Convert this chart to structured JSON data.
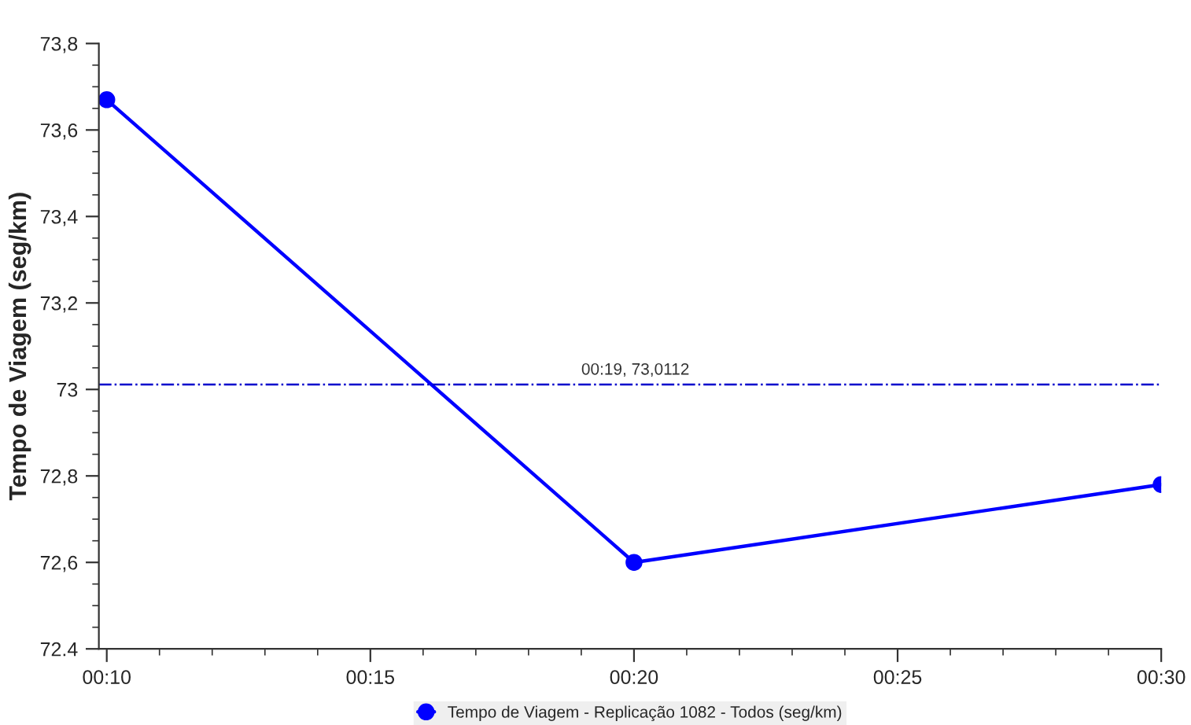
{
  "chart_data": {
    "type": "line",
    "ylabel": "Tempo de Viagem (seg/km)",
    "x": [
      10,
      20,
      30
    ],
    "series": [
      {
        "name": "Tempo de Viagem - Replicação 1082 - Todos (seg/km)",
        "color": "#0000ff",
        "values": [
          73.67,
          72.6,
          72.78
        ]
      }
    ],
    "xlim": [
      9.85,
      30
    ],
    "xticks": [
      {
        "value": 10,
        "label": "00:10"
      },
      {
        "value": 15,
        "label": "00:15"
      },
      {
        "value": 20,
        "label": "00:20"
      },
      {
        "value": 25,
        "label": "00:25"
      },
      {
        "value": 30,
        "label": "00:30"
      }
    ],
    "ylim": [
      72.4,
      73.8
    ],
    "yticks": [
      72.4,
      {
        "value": 72.6,
        "label": "72,6"
      },
      {
        "value": 72.8,
        "label": "72,8"
      },
      73,
      {
        "value": 73.2,
        "label": "73,2"
      },
      {
        "value": 73.4,
        "label": "73,4"
      },
      {
        "value": 73.6,
        "label": "73,6"
      },
      {
        "value": 73.8,
        "label": "73,8"
      }
    ],
    "ref_lines": [
      {
        "axis": "y",
        "value": 73.0112,
        "color": "#0000cc",
        "line_style": "dashdot"
      }
    ],
    "annotations": [
      {
        "text": "00:19, 73,0112",
        "x": 19,
        "y": 73.0112
      }
    ],
    "marker": "circle",
    "line_style": "solid",
    "grid": false,
    "legend": "bottom"
  }
}
